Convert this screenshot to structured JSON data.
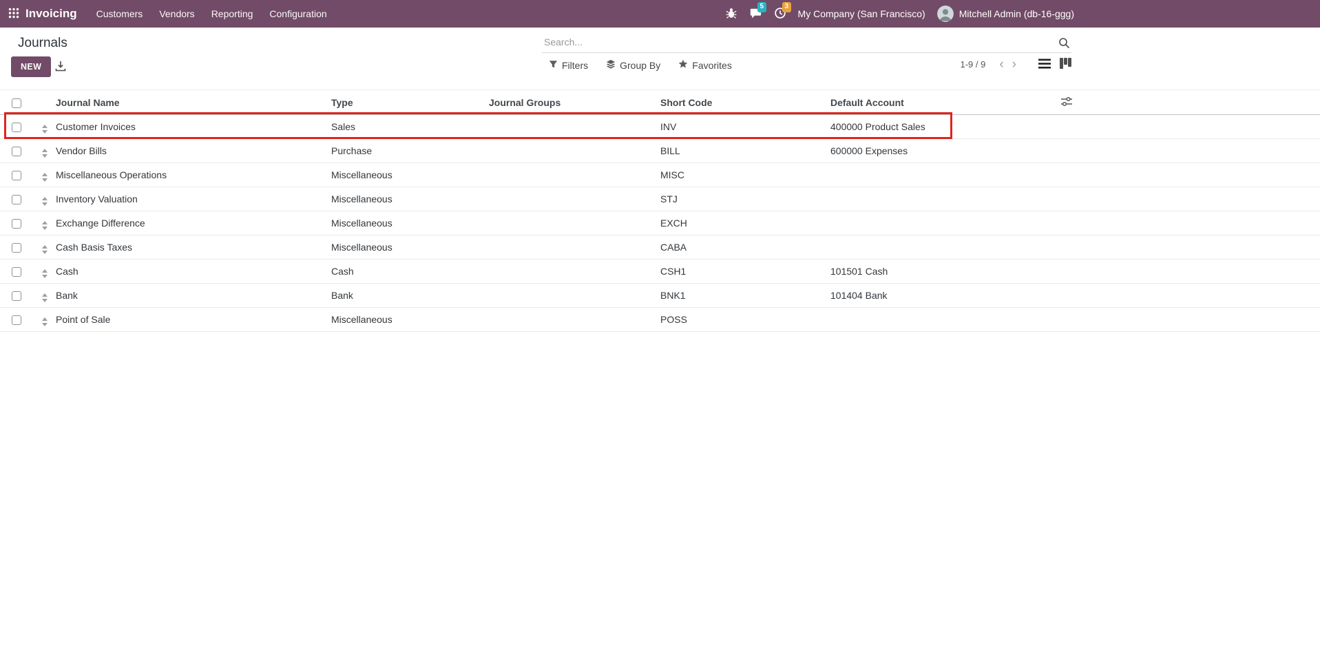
{
  "topbar": {
    "app_name": "Invoicing",
    "menu": [
      "Customers",
      "Vendors",
      "Reporting",
      "Configuration"
    ],
    "messages_badge": "5",
    "activities_badge": "3",
    "company_name": "My Company (San Francisco)",
    "user_name": "Mitchell Admin (db-16-ggg)"
  },
  "control_panel": {
    "title": "Journals",
    "new_button": "NEW",
    "search_placeholder": "Search...",
    "facets": {
      "filters": "Filters",
      "group_by": "Group By",
      "favorites": "Favorites"
    },
    "pager": {
      "range": "1-9 / 9",
      "prev_glyph": "‹",
      "next_glyph": "›"
    }
  },
  "table": {
    "headers": {
      "name": "Journal Name",
      "type": "Type",
      "groups": "Journal Groups",
      "short_code": "Short Code",
      "default_account": "Default Account"
    },
    "rows": [
      {
        "name": "Customer Invoices",
        "type": "Sales",
        "groups": "",
        "short_code": "INV",
        "default_account": "400000 Product Sales",
        "highlighted": true
      },
      {
        "name": "Vendor Bills",
        "type": "Purchase",
        "groups": "",
        "short_code": "BILL",
        "default_account": "600000 Expenses"
      },
      {
        "name": "Miscellaneous Operations",
        "type": "Miscellaneous",
        "groups": "",
        "short_code": "MISC",
        "default_account": ""
      },
      {
        "name": "Inventory Valuation",
        "type": "Miscellaneous",
        "groups": "",
        "short_code": "STJ",
        "default_account": ""
      },
      {
        "name": "Exchange Difference",
        "type": "Miscellaneous",
        "groups": "",
        "short_code": "EXCH",
        "default_account": ""
      },
      {
        "name": "Cash Basis Taxes",
        "type": "Miscellaneous",
        "groups": "",
        "short_code": "CABA",
        "default_account": ""
      },
      {
        "name": "Cash",
        "type": "Cash",
        "groups": "",
        "short_code": "CSH1",
        "default_account": "101501 Cash"
      },
      {
        "name": "Bank",
        "type": "Bank",
        "groups": "",
        "short_code": "BNK1",
        "default_account": "101404 Bank"
      },
      {
        "name": "Point of Sale",
        "type": "Miscellaneous",
        "groups": "",
        "short_code": "POSS",
        "default_account": ""
      }
    ]
  },
  "icons": {
    "topbar": [
      "apps-grid-icon",
      "bug-icon",
      "messages-icon",
      "activities-icon"
    ],
    "search": [
      "magnifier-icon"
    ],
    "actions": [
      "download-icon"
    ],
    "facets": [
      "filter-funnel-icon",
      "group-by-layers-icon",
      "favorites-star-icon"
    ],
    "pager": [
      "chevron-left-icon",
      "chevron-right-icon"
    ],
    "view_switcher": [
      "list-view-icon",
      "kanban-view-icon"
    ],
    "table": [
      "row-checkbox",
      "drag-handle-icon",
      "optional-columns-icon"
    ]
  },
  "colors": {
    "topbar_bg": "#714B67",
    "primary_button_bg": "#714B67",
    "messages_badge_bg": "#29b3c4",
    "activities_badge_bg": "#e8a33c",
    "highlight_border": "#e0241c"
  }
}
